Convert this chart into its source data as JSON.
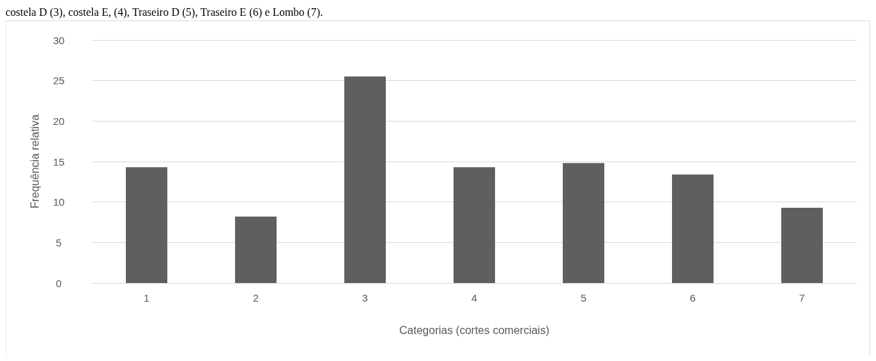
{
  "chart_data": {
    "type": "bar",
    "annotations": [
      "costela D (3), costela E, (4), Traseiro D (5), Traseiro E (6) e Lombo (7)."
    ],
    "xlabel": "Categorias (cortes comerciais)",
    "ylabel": "Frequência relativa",
    "categories": [
      "1",
      "2",
      "3",
      "4",
      "5",
      "6",
      "7"
    ],
    "values": [
      14.3,
      8.2,
      25.5,
      14.3,
      14.8,
      13.4,
      9.3
    ],
    "color": "#5f5f5f",
    "ylim": [
      0,
      30
    ],
    "yticks": [
      0,
      5,
      10,
      15,
      20,
      25,
      30
    ],
    "grid": "y"
  }
}
